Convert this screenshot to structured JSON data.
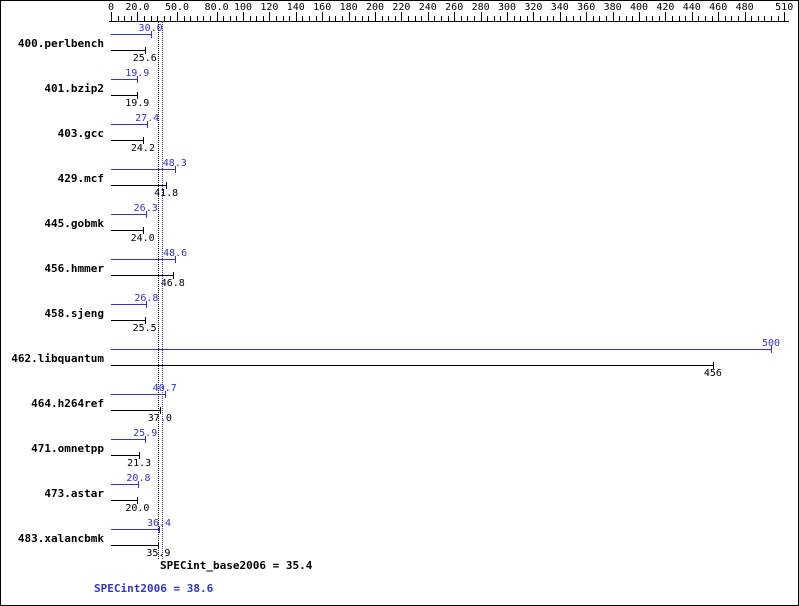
{
  "colors": {
    "peak": "#3333cc",
    "base": "#000000",
    "background": "#ffffff",
    "border": "#000000"
  },
  "chart_data": {
    "type": "bar",
    "orientation": "horizontal",
    "xlim": [
      0,
      510
    ],
    "axis_minor_step": 5,
    "tick_values": [
      0,
      20,
      50,
      80,
      100,
      120,
      140,
      160,
      180,
      200,
      220,
      240,
      260,
      280,
      300,
      320,
      340,
      360,
      380,
      400,
      420,
      440,
      460,
      480,
      510
    ],
    "tick_labels": [
      "0",
      "20.0",
      "50.0",
      "80.0",
      "100",
      "120",
      "140",
      "160",
      "180",
      "200",
      "220",
      "240",
      "260",
      "280",
      "300",
      "320",
      "340",
      "360",
      "380",
      "400",
      "420",
      "440",
      "460",
      "480",
      "510"
    ],
    "categories": [
      "400.perlbench",
      "401.bzip2",
      "403.gcc",
      "429.mcf",
      "445.gobmk",
      "456.hmmer",
      "458.sjeng",
      "462.libquantum",
      "464.h264ref",
      "471.omnetpp",
      "473.astar",
      "483.xalancbmk"
    ],
    "series": [
      {
        "name": "peak",
        "color": "#3333cc",
        "values": [
          30.0,
          19.9,
          27.4,
          48.3,
          26.3,
          48.6,
          26.8,
          500,
          40.7,
          25.9,
          20.8,
          36.4
        ],
        "labels": [
          "30.0",
          "19.9",
          "27.4",
          "48.3",
          "26.3",
          "48.6",
          "26.8",
          "500",
          "40.7",
          "25.9",
          "20.8",
          "36.4"
        ]
      },
      {
        "name": "base",
        "color": "#000000",
        "values": [
          25.6,
          19.9,
          24.2,
          41.8,
          24.0,
          46.8,
          25.5,
          456,
          37.0,
          21.3,
          20.0,
          35.9
        ],
        "labels": [
          "25.6",
          "19.9",
          "24.2",
          "41.8",
          "24.0",
          "46.8",
          "25.5",
          "456",
          "37.0",
          "21.3",
          "20.0",
          "35.9"
        ]
      }
    ],
    "mean_lines": [
      {
        "name": "base",
        "label": "SPECint_base2006 = 35.4",
        "value": 35.4,
        "color": "#000000"
      },
      {
        "name": "peak",
        "label": "SPECint2006 = 38.6",
        "value": 38.6,
        "color": "#3333cc"
      }
    ]
  }
}
